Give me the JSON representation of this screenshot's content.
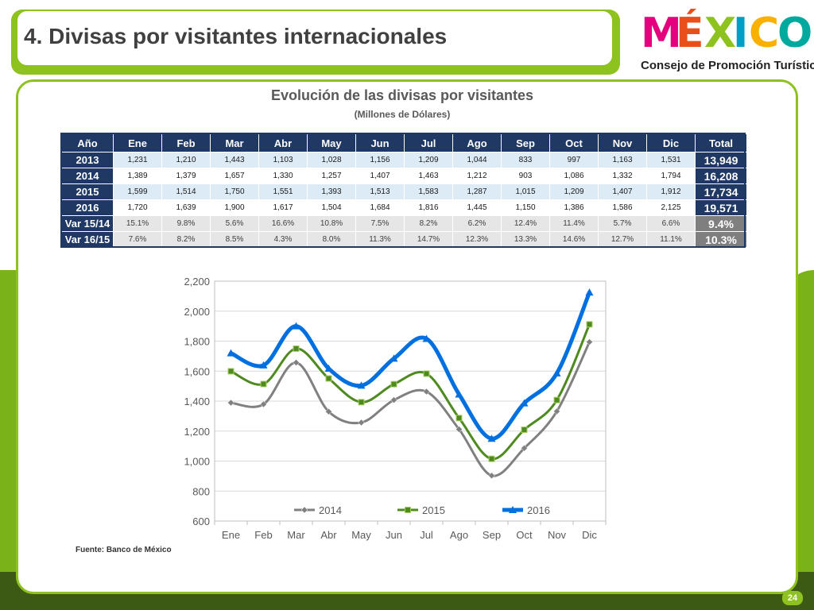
{
  "page_title": "4. Divisas por visitantes internacionales",
  "logo": {
    "text": "MÉXICO",
    "subtitle": "Consejo de Promoción Turística"
  },
  "table": {
    "headers": [
      "Año",
      "Ene",
      "Feb",
      "Mar",
      "Abr",
      "May",
      "Jun",
      "Jul",
      "Ago",
      "Sep",
      "Oct",
      "Nov",
      "Dic",
      "Total"
    ],
    "rows": [
      {
        "label": "2013",
        "cells": [
          "1,231",
          "1,210",
          "1,443",
          "1,103",
          "1,028",
          "1,156",
          "1,209",
          "1,044",
          "833",
          "997",
          "1,163",
          "1,531"
        ],
        "total": "13,949"
      },
      {
        "label": "2014",
        "cells": [
          "1,389",
          "1,379",
          "1,657",
          "1,330",
          "1,257",
          "1,407",
          "1,463",
          "1,212",
          "903",
          "1,086",
          "1,332",
          "1,794"
        ],
        "total": "16,208"
      },
      {
        "label": "2015",
        "cells": [
          "1,599",
          "1,514",
          "1,750",
          "1,551",
          "1,393",
          "1,513",
          "1,583",
          "1,287",
          "1,015",
          "1,209",
          "1,407",
          "1,912"
        ],
        "total": "17,734"
      },
      {
        "label": "2016",
        "cells": [
          "1,720",
          "1,639",
          "1,900",
          "1,617",
          "1,504",
          "1,684",
          "1,816",
          "1,445",
          "1,150",
          "1,386",
          "1,586",
          "2,125"
        ],
        "total": "19,571"
      },
      {
        "label": "Var 15/14",
        "cells": [
          "15.1%",
          "9.8%",
          "5.6%",
          "16.6%",
          "10.8%",
          "7.5%",
          "8.2%",
          "6.2%",
          "12.4%",
          "11.4%",
          "5.7%",
          "6.6%"
        ],
        "total": "9.4%"
      },
      {
        "label": "Var 16/15",
        "cells": [
          "7.6%",
          "8.2%",
          "8.5%",
          "4.3%",
          "8.0%",
          "11.3%",
          "14.7%",
          "12.3%",
          "13.3%",
          "14.6%",
          "12.7%",
          "11.1%"
        ],
        "total": "10.3%"
      }
    ]
  },
  "source": "Fuente: Banco de México",
  "page_number": "24",
  "colors": {
    "accent_green": "#8dc21f",
    "table_navy": "#1f3864"
  },
  "chart_data": {
    "type": "line",
    "title": "Evolución de las divisas por visitantes",
    "subtitle": "(Millones de Dólares)",
    "categories": [
      "Ene",
      "Feb",
      "Mar",
      "Abr",
      "May",
      "Jun",
      "Jul",
      "Ago",
      "Sep",
      "Oct",
      "Nov",
      "Dic"
    ],
    "ylim": [
      600,
      2200
    ],
    "yticks": [
      600,
      800,
      1000,
      1200,
      1400,
      1600,
      1800,
      2000,
      2200
    ],
    "ytick_labels": [
      "600",
      "800",
      "1,000",
      "1,200",
      "1,400",
      "1,600",
      "1,800",
      "2,000",
      "2,200"
    ],
    "grid": true,
    "legend": "bottom",
    "series": [
      {
        "name": "2014",
        "color": "#808080",
        "marker": "diamond",
        "values": [
          1389,
          1379,
          1657,
          1330,
          1257,
          1407,
          1463,
          1212,
          903,
          1086,
          1332,
          1794
        ]
      },
      {
        "name": "2015",
        "color": "#4e8a1f",
        "marker": "square",
        "values": [
          1599,
          1514,
          1750,
          1551,
          1393,
          1513,
          1583,
          1287,
          1015,
          1209,
          1407,
          1912
        ]
      },
      {
        "name": "2016",
        "color": "#0070e0",
        "marker": "triangle",
        "values": [
          1720,
          1639,
          1900,
          1617,
          1504,
          1684,
          1816,
          1445,
          1150,
          1386,
          1586,
          2125
        ]
      }
    ]
  }
}
